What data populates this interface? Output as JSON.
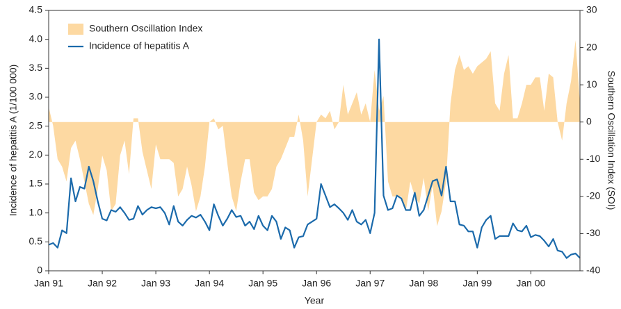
{
  "chart_data": {
    "type": "area-line",
    "x_label": "Year",
    "y_label": "Incidence of hepatitis A (1/100 000)",
    "y2_label": "Southern Oscillation Index (SOI)",
    "legend": "upper left",
    "categories": [
      "Jan 91",
      null,
      null,
      null,
      null,
      null,
      null,
      null,
      null,
      null,
      null,
      null,
      "Jan 92",
      null,
      null,
      null,
      null,
      null,
      null,
      null,
      null,
      null,
      null,
      null,
      "Jan 93",
      null,
      null,
      null,
      null,
      null,
      null,
      null,
      null,
      null,
      null,
      null,
      "Jan 94",
      null,
      null,
      null,
      null,
      null,
      null,
      null,
      null,
      null,
      null,
      null,
      "Jan 95",
      null,
      null,
      null,
      null,
      null,
      null,
      null,
      null,
      null,
      null,
      null,
      "Jan 96",
      null,
      null,
      null,
      null,
      null,
      null,
      null,
      null,
      null,
      null,
      null,
      "Jan 97",
      null,
      null,
      null,
      null,
      null,
      null,
      null,
      null,
      null,
      null,
      null,
      "Jan 98",
      null,
      null,
      null,
      null,
      null,
      null,
      null,
      null,
      null,
      null,
      null,
      "Jan 99",
      null,
      null,
      null,
      null,
      null,
      null,
      null,
      null,
      null,
      null,
      null,
      "Jan 00",
      null,
      null,
      null,
      null,
      null,
      null,
      null,
      null,
      null,
      null,
      null
    ],
    "ylim": [
      0,
      4.5
    ],
    "yticks": [
      0,
      0.5,
      {
        "value": 1,
        "label": "1.0"
      },
      1.5,
      {
        "value": 2,
        "label": "2.0"
      },
      2.5,
      {
        "value": 3,
        "label": "3.0"
      },
      3.5,
      {
        "value": 4,
        "label": "4.0"
      },
      4.5
    ],
    "y2lim": [
      -40,
      30
    ],
    "y2ticks": [
      -40,
      -30,
      -20,
      -10,
      0,
      10,
      20,
      30
    ],
    "series": [
      {
        "name": "Southern Oscillation Index",
        "color": "#fdd9a2",
        "axis": "y2",
        "kind": "area",
        "values": [
          4,
          -1,
          -10,
          -12,
          -16,
          -7,
          -5,
          -10,
          -16,
          -22,
          -25,
          -18,
          -9,
          -13,
          -24,
          -22,
          -9,
          -5,
          -14,
          1,
          1,
          -8,
          -13,
          -18,
          -6,
          -10,
          -10,
          -10,
          -11,
          -20,
          -18,
          -12,
          -17,
          -24,
          -20,
          -12,
          0,
          1,
          -2,
          -1,
          -11,
          -20,
          -24,
          -16,
          -10,
          -10,
          -19,
          -21,
          -20,
          -20,
          -18,
          -12,
          -10,
          -7,
          -4,
          -4,
          2,
          -5,
          -20,
          -10,
          0,
          2,
          1,
          3,
          -2,
          0,
          10,
          2,
          5,
          8,
          2,
          5,
          0,
          14,
          3,
          7,
          -16,
          -20,
          -20,
          -20,
          -24,
          -16,
          -20,
          -22,
          -15,
          -24,
          -17,
          -28,
          -24,
          -16,
          5,
          14,
          18,
          14,
          15,
          13,
          15,
          16,
          17,
          19,
          5,
          3,
          13,
          18,
          1,
          1,
          5,
          10,
          10,
          12,
          12,
          3,
          13,
          12,
          0,
          -5,
          5,
          11,
          22,
          5
        ]
      },
      {
        "name": "Incidence of hepatitis A",
        "color": "#1b6aab",
        "axis": "y",
        "kind": "line",
        "values": [
          0.45,
          0.48,
          0.4,
          0.7,
          0.65,
          1.6,
          1.2,
          1.45,
          1.42,
          1.8,
          1.55,
          1.2,
          0.9,
          0.87,
          1.05,
          1.02,
          1.1,
          1.0,
          0.88,
          0.9,
          1.12,
          0.97,
          1.05,
          1.1,
          1.08,
          1.1,
          1.0,
          0.8,
          1.12,
          0.85,
          0.78,
          0.88,
          0.95,
          0.92,
          0.97,
          0.85,
          0.7,
          1.15,
          0.95,
          0.78,
          0.9,
          1.05,
          0.93,
          0.95,
          0.78,
          0.85,
          0.72,
          0.95,
          0.78,
          0.7,
          0.95,
          0.85,
          0.55,
          0.75,
          0.7,
          0.4,
          0.58,
          0.6,
          0.8,
          0.85,
          0.9,
          1.5,
          1.3,
          1.1,
          1.15,
          1.08,
          1.0,
          0.88,
          1.05,
          0.85,
          0.8,
          0.88,
          0.65,
          1.0,
          4.0,
          1.3,
          1.05,
          1.08,
          1.3,
          1.25,
          1.05,
          1.05,
          1.35,
          0.95,
          1.05,
          1.3,
          1.55,
          1.58,
          1.3,
          1.8,
          1.2,
          1.2,
          0.8,
          0.78,
          0.68,
          0.68,
          0.4,
          0.75,
          0.88,
          0.95,
          0.55,
          0.6,
          0.6,
          0.6,
          0.82,
          0.7,
          0.68,
          0.78,
          0.58,
          0.62,
          0.6,
          0.52,
          0.42,
          0.55,
          0.35,
          0.33,
          0.22,
          0.28,
          0.3,
          0.22
        ]
      }
    ]
  }
}
